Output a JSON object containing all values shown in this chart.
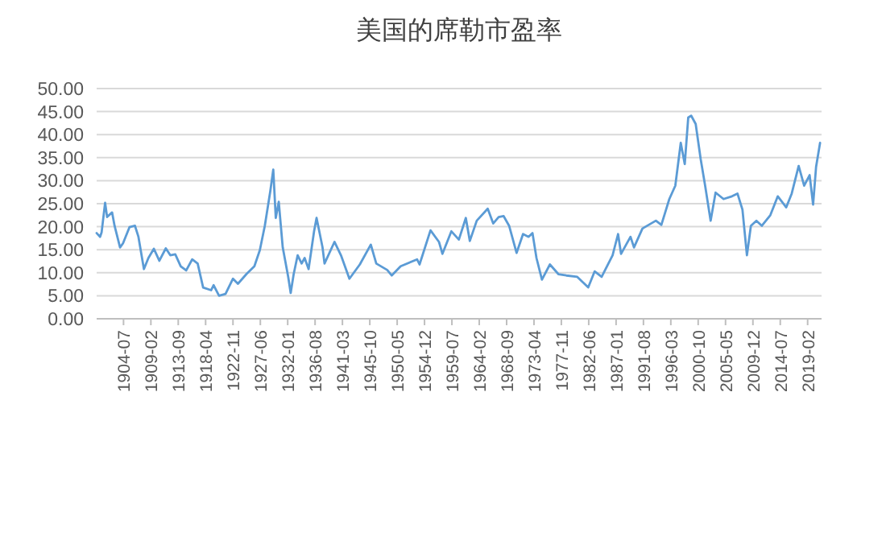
{
  "chart_data": {
    "type": "line",
    "title": "美国的席勒市盈率",
    "x": [
      "1900-01",
      "1900-08",
      "1900-11",
      "1901-06",
      "1901-10",
      "1902-08",
      "1903-01",
      "1903-12",
      "1904-06",
      "1905-07",
      "1906-06",
      "1907-01",
      "1907-12",
      "1908-09",
      "1909-08",
      "1910-07",
      "1911-08",
      "1912-05",
      "1913-03",
      "1914-02",
      "1915-01",
      "1916-01",
      "1916-12",
      "1917-11",
      "1919-03",
      "1919-08",
      "1920-07",
      "1921-08",
      "1922-11",
      "1923-09",
      "1925-02",
      "1926-06",
      "1927-05",
      "1928-03",
      "1929-02",
      "1929-08",
      "1930-01",
      "1930-07",
      "1931-03",
      "1932-02",
      "1932-07",
      "1933-01",
      "1933-09",
      "1934-05",
      "1934-11",
      "1935-07",
      "1936-06",
      "1936-11",
      "1937-11",
      "1938-03",
      "1939-11",
      "1940-12",
      "1942-05",
      "1944-02",
      "1945-12",
      "1946-11",
      "1948-09",
      "1949-06",
      "1950-12",
      "1953-09",
      "1954-02",
      "1955-12",
      "1957-05",
      "1957-12",
      "1959-06",
      "1960-09",
      "1961-11",
      "1962-07",
      "1963-09",
      "1965-07",
      "1966-06",
      "1967-05",
      "1968-03",
      "1969-02",
      "1970-05",
      "1971-06",
      "1972-05",
      "1973-01",
      "1973-09",
      "1974-08",
      "1975-12",
      "1977-05",
      "1978-09",
      "1980-07",
      "1982-05",
      "1983-06",
      "1984-08",
      "1986-06",
      "1987-05",
      "1987-11",
      "1989-06",
      "1990-01",
      "1991-06",
      "1993-09",
      "1994-08",
      "1995-12",
      "1996-12",
      "1997-11",
      "1998-07",
      "1999-02",
      "1999-08",
      "2000-05",
      "2001-03",
      "2001-12",
      "2002-11",
      "2003-09",
      "2005-01",
      "2006-06",
      "2007-05",
      "2008-03",
      "2008-12",
      "2009-08",
      "2010-07",
      "2011-06",
      "2012-11",
      "2014-02",
      "2015-07",
      "2016-06",
      "2017-08",
      "2018-07",
      "2019-06",
      "2020-01",
      "2020-07",
      "2021-03"
    ],
    "series": [
      {
        "color": "#5b9bd5",
        "values": [
          18.6,
          17.8,
          18.8,
          25.2,
          22.1,
          23.1,
          20.2,
          15.5,
          16.4,
          19.9,
          20.2,
          17.8,
          10.8,
          13.2,
          15.2,
          12.6,
          15.3,
          13.8,
          14.0,
          11.4,
          10.5,
          12.9,
          12.0,
          6.8,
          6.2,
          7.3,
          5.0,
          5.4,
          8.7,
          7.6,
          9.7,
          11.4,
          14.9,
          20.2,
          27.7,
          32.4,
          21.9,
          25.4,
          15.5,
          9.1,
          5.6,
          9.7,
          13.8,
          12.0,
          13.2,
          10.8,
          19.0,
          21.9,
          15.5,
          12.0,
          16.7,
          13.8,
          8.7,
          11.8,
          16.1,
          12.0,
          10.6,
          9.4,
          11.4,
          12.9,
          11.8,
          19.2,
          16.7,
          14.1,
          19.0,
          17.2,
          21.9,
          16.9,
          21.3,
          23.9,
          20.7,
          22.1,
          22.3,
          20.2,
          14.3,
          18.4,
          17.8,
          18.6,
          13.2,
          8.5,
          11.8,
          9.7,
          9.4,
          9.1,
          6.8,
          10.3,
          9.1,
          13.8,
          18.4,
          14.1,
          17.8,
          15.5,
          19.6,
          21.3,
          20.4,
          26.0,
          28.9,
          38.2,
          33.6,
          43.7,
          44.1,
          42.3,
          34.7,
          28.9,
          21.3,
          27.4,
          26.0,
          26.6,
          27.2,
          23.7,
          13.8,
          20.2,
          21.3,
          20.2,
          22.5,
          26.6,
          24.2,
          27.2,
          33.2,
          28.9,
          31.2,
          24.8,
          33.0,
          38.2
        ]
      }
    ],
    "xlim": [
      "1900-01",
      "2021-06"
    ],
    "xticks": [
      {
        "value": "1904-07",
        "label": "1904-07"
      },
      {
        "value": "1909-02",
        "label": "1909-02"
      },
      {
        "value": "1913-09",
        "label": "1913-09"
      },
      {
        "value": "1918-04",
        "label": "1918-04"
      },
      {
        "value": "1922-11",
        "label": "1922-11"
      },
      {
        "value": "1927-06",
        "label": "1927-06"
      },
      {
        "value": "1932-01",
        "label": "1932-01"
      },
      {
        "value": "1936-08",
        "label": "1936-08"
      },
      {
        "value": "1941-03",
        "label": "1941-03"
      },
      {
        "value": "1945-10",
        "label": "1945-10"
      },
      {
        "value": "1950-05",
        "label": "1950-05"
      },
      {
        "value": "1954-12",
        "label": "1954-12"
      },
      {
        "value": "1959-07",
        "label": "1959-07"
      },
      {
        "value": "1964-02",
        "label": "1964-02"
      },
      {
        "value": "1968-09",
        "label": "1968-09"
      },
      {
        "value": "1973-04",
        "label": "1973-04"
      },
      {
        "value": "1977-11",
        "label": "1977-11"
      },
      {
        "value": "1982-06",
        "label": "1982-06"
      },
      {
        "value": "1987-01",
        "label": "1987-01"
      },
      {
        "value": "1991-08",
        "label": "1991-08"
      },
      {
        "value": "1996-03",
        "label": "1996-03"
      },
      {
        "value": "2000-10",
        "label": "2000-10"
      },
      {
        "value": "2005-05",
        "label": "2005-05"
      },
      {
        "value": "2009-12",
        "label": "2009-12"
      },
      {
        "value": "2014-07",
        "label": "2014-07"
      },
      {
        "value": "2019-02",
        "label": "2019-02"
      }
    ],
    "ylim": [
      0,
      50
    ],
    "yticks": [
      {
        "value": 0,
        "label": "0.00"
      },
      {
        "value": 5,
        "label": "5.00"
      },
      {
        "value": 10,
        "label": "10.00"
      },
      {
        "value": 15,
        "label": "15.00"
      },
      {
        "value": 20,
        "label": "20.00"
      },
      {
        "value": 25,
        "label": "25.00"
      },
      {
        "value": 30,
        "label": "30.00"
      },
      {
        "value": 35,
        "label": "35.00"
      },
      {
        "value": 40,
        "label": "40.00"
      },
      {
        "value": 45,
        "label": "45.00"
      },
      {
        "value": 50,
        "label": "50.00"
      }
    ],
    "grid": "y"
  }
}
